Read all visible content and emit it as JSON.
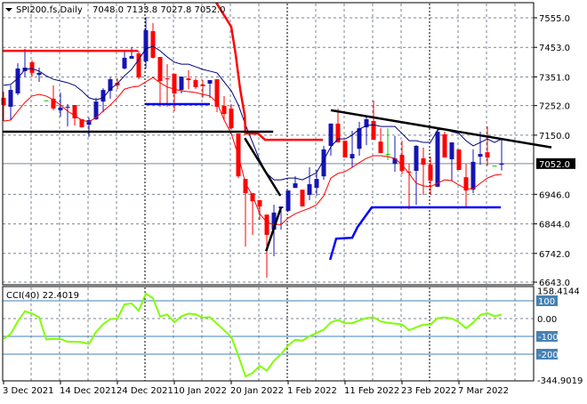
{
  "header": {
    "symbol": "SPI200.fs,Daily",
    "ohlc": "7048.0 7133.8 7027.8 7052.0"
  },
  "colors": {
    "bull": "#1414b4",
    "bear": "#ff0000",
    "doji": "#00cc00",
    "ma": "#000080",
    "envelope": "#ff0000",
    "cci": "#7fff00",
    "level": "#4682b4",
    "grid": "#7b8694"
  },
  "chart_data": [
    {
      "type": "candlestick",
      "title": "SPI200.fs,Daily",
      "x_labels": [
        {
          "index": 0,
          "label": "3 Dec 2021"
        },
        {
          "index": 8,
          "label": "14 Dec 2021"
        },
        {
          "index": 16,
          "label": "24 Dec 2021"
        },
        {
          "index": 24,
          "label": "10 Jan 2022"
        },
        {
          "index": 32,
          "label": "20 Jan 2022"
        },
        {
          "index": 40,
          "label": "1 Feb 2022"
        },
        {
          "index": 48,
          "label": "11 Feb 2022"
        },
        {
          "index": 56,
          "label": "23 Feb 2022"
        },
        {
          "index": 64,
          "label": "7 Mar 2022"
        }
      ],
      "y_ticks": [
        "7555.0",
        "7453.0",
        "7351.0",
        "7252.0",
        "7150.0",
        "6946.0",
        "6844.0",
        "6742.0",
        "6643.0"
      ],
      "ylim": [
        6643,
        7555
      ],
      "current_price": "7052.0",
      "candles_ohlc": [
        [
          7279,
          7300,
          7199,
          7254
        ],
        [
          7248,
          7322,
          7202,
          7306
        ],
        [
          7294,
          7398,
          7288,
          7380
        ],
        [
          7371,
          7448,
          7352,
          7383
        ],
        [
          7402,
          7408,
          7352,
          7365
        ],
        [
          7358,
          7383,
          7334,
          7365
        ],
        [
          7270,
          7270,
          7270,
          7270
        ],
        [
          7276,
          7322,
          7236,
          7242
        ],
        [
          7236,
          7297,
          7214,
          7245
        ],
        [
          7245,
          7257,
          7180,
          7248
        ],
        [
          7254,
          7254,
          7183,
          7208
        ],
        [
          7205,
          7205,
          7177,
          7177
        ],
        [
          7186,
          7211,
          7144,
          7202
        ],
        [
          7205,
          7279,
          7202,
          7266
        ],
        [
          7266,
          7312,
          7229,
          7306
        ],
        [
          7303,
          7349,
          7276,
          7343
        ],
        [
          7331,
          7346,
          7309,
          7322
        ],
        [
          7380,
          7441,
          7377,
          7417
        ],
        [
          7414,
          7454,
          7414,
          7423
        ],
        [
          7432,
          7441,
          7343,
          7349
        ],
        [
          7405,
          7558,
          7380,
          7512
        ],
        [
          7509,
          7537,
          7414,
          7417
        ],
        [
          7420,
          7420,
          7248,
          7337
        ],
        [
          7346,
          7395,
          7248,
          7343
        ],
        [
          7362,
          7362,
          7233,
          7294
        ],
        [
          7306,
          7352,
          7294,
          7352
        ],
        [
          7346,
          7374,
          7309,
          7340
        ],
        [
          7340,
          7346,
          7309,
          7316
        ],
        [
          7325,
          7340,
          7279,
          7319
        ],
        [
          7328,
          7340,
          7279,
          7340
        ],
        [
          7343,
          7343,
          7229,
          7248
        ],
        [
          7251,
          7285,
          7202,
          7223
        ],
        [
          7242,
          7257,
          7168,
          7174
        ],
        [
          7156,
          7156,
          7002,
          7008
        ],
        [
          6999,
          6999,
          6766,
          6950
        ],
        [
          6950,
          6950,
          6806,
          6922
        ],
        [
          6926,
          6926,
          6858,
          6904
        ],
        [
          6876,
          6876,
          6658,
          6806
        ],
        [
          6824,
          6910,
          6732,
          6883
        ],
        [
          6898,
          6904,
          6824,
          6904
        ],
        [
          6889,
          6959,
          6886,
          6959
        ],
        [
          6968,
          7008,
          6968,
          6984
        ],
        [
          6962,
          6962,
          6904,
          6904
        ],
        [
          6944,
          7039,
          6926,
          6981
        ],
        [
          6968,
          7030,
          6941,
          6999
        ],
        [
          7008,
          7113,
          6996,
          7101
        ],
        [
          7113,
          7190,
          7079,
          7190
        ],
        [
          7190,
          7242,
          7125,
          7125
        ],
        [
          7131,
          7131,
          7073,
          7073
        ],
        [
          7070,
          7165,
          7039,
          7085
        ],
        [
          7103,
          7196,
          7079,
          7174
        ],
        [
          7177,
          7217,
          7116,
          7205
        ],
        [
          7199,
          7269,
          7134,
          7134
        ],
        [
          7128,
          7174,
          7088,
          7088
        ],
        [
          7085,
          7174,
          7064,
          7085
        ],
        [
          7051,
          7147,
          7024,
          7070
        ],
        [
          7082,
          7131,
          7015,
          7027
        ],
        [
          7024,
          7051,
          6895,
          7021
        ],
        [
          7027,
          7116,
          6910,
          7113
        ],
        [
          7070,
          7107,
          6944,
          7048
        ],
        [
          7048,
          7076,
          6944,
          6993
        ],
        [
          6972,
          7177,
          6972,
          7162
        ],
        [
          7153,
          7162,
          7073,
          7073
        ],
        [
          7067,
          7125,
          6993,
          7125
        ],
        [
          7101,
          7101,
          7030,
          7030
        ],
        [
          7005,
          7051,
          6901,
          6959
        ],
        [
          6962,
          7101,
          6950,
          7058
        ],
        [
          7076,
          7162,
          7048,
          7085
        ],
        [
          7091,
          7180,
          7044,
          7073
        ],
        [
          7045,
          7045,
          7045,
          7045
        ],
        [
          7048,
          7134,
          7028,
          7052
        ]
      ],
      "moving_average": [
        7322,
        7325,
        7346,
        7377,
        7380,
        7371,
        7355,
        7343,
        7337,
        7331,
        7322,
        7303,
        7279,
        7272,
        7279,
        7309,
        7328,
        7355,
        7377,
        7411,
        7448,
        7457,
        7441,
        7420,
        7402,
        7395,
        7395,
        7386,
        7377,
        7371,
        7365,
        7334,
        7303,
        7254,
        7186,
        7125,
        7064,
        7018,
        6996,
        6996,
        7002,
        7002,
        6996,
        7008,
        7021,
        7064,
        7110,
        7137,
        7137,
        7150,
        7171,
        7183,
        7186,
        7180,
        7180,
        7180,
        7156,
        7131,
        7131,
        7125,
        7125,
        7168,
        7171,
        7162,
        7156,
        7131,
        7113,
        7125,
        7137,
        7125,
        7137
      ],
      "lower_band": [
        7199,
        7202,
        7233,
        7263,
        7285,
        7291,
        7285,
        7272,
        7254,
        7233,
        7217,
        7202,
        7196,
        7211,
        7233,
        7254,
        7279,
        7309,
        7316,
        7319,
        7334,
        7349,
        7331,
        7316,
        7309,
        7303,
        7300,
        7297,
        7291,
        7285,
        7263,
        7202,
        7156,
        7079,
        6984,
        6941,
        6879,
        6849,
        6842,
        6842,
        6864,
        6879,
        6889,
        6898,
        6910,
        6941,
        7002,
        7018,
        7024,
        7039,
        7055,
        7070,
        7079,
        7079,
        7076,
        7070,
        7048,
        7018,
        6984,
        6975,
        6972,
        6984,
        6996,
        6993,
        6978,
        6965,
        6965,
        6984,
        7002,
        7012,
        7015
      ],
      "drawings": [
        {
          "kind": "resistance",
          "color": "#ff0000",
          "points": [
            [
              -0.1,
              7441
            ],
            [
              18.9,
              7441
            ]
          ]
        },
        {
          "kind": "resistance",
          "color": "#ff0000",
          "points": [
            [
              29.9,
              7607
            ],
            [
              32,
              7524
            ],
            [
              32.6,
              7432
            ],
            [
              33.25,
              7309
            ],
            [
              33.9,
              7217
            ],
            [
              34,
              7156
            ],
            [
              35.75,
              7156
            ],
            [
              36.75,
              7134
            ],
            [
              44.9,
              7134
            ]
          ]
        },
        {
          "kind": "support",
          "color": "#0000ff",
          "points": [
            [
              19.9,
              7257
            ],
            [
              29,
              7257
            ]
          ]
        },
        {
          "kind": "level",
          "color": "#000000",
          "points": [
            [
              -0.1,
              7162
            ],
            [
              37.9,
              7162
            ]
          ]
        },
        {
          "kind": "trendline",
          "color": "#000000",
          "points": [
            [
              33.9,
              7140
            ],
            [
              38.9,
              6941
            ]
          ]
        },
        {
          "kind": "trendline",
          "color": "#000000",
          "points": [
            [
              36.9,
              6750
            ],
            [
              39,
              6901
            ]
          ]
        },
        {
          "kind": "trendline",
          "color": "#000000",
          "points": [
            [
              46,
              7236
            ],
            [
              77,
              7108
            ]
          ]
        },
        {
          "kind": "support",
          "color": "#0000ff",
          "points": [
            [
              45.9,
              6720
            ],
            [
              46.75,
              6793
            ],
            [
              49,
              6796
            ],
            [
              49.75,
              6833
            ],
            [
              51.75,
              6901
            ],
            [
              69.9,
              6901
            ]
          ]
        }
      ]
    },
    {
      "type": "line",
      "title": "CCI(40) 22.4019",
      "y_ticks": [
        "158.4144",
        "100",
        "0.00",
        "-100",
        "-200",
        "-344.9019"
      ],
      "levels": [
        100,
        -100,
        -200
      ],
      "ylim": [
        -344.9019,
        158.4144
      ],
      "values": [
        -115,
        -86,
        -16,
        41,
        28,
        7,
        -117,
        -114,
        -115,
        -130,
        -130,
        -132,
        -143,
        -75,
        -31,
        -3,
        0,
        80,
        85,
        44,
        141,
        114,
        11,
        23,
        -21,
        13,
        28,
        24,
        5,
        8,
        -29,
        -65,
        -102,
        -208,
        -325,
        -306,
        -265,
        -293,
        -237,
        -200,
        -151,
        -119,
        -124,
        -99,
        -81,
        -62,
        -21,
        -8,
        -26,
        -26,
        -10,
        3,
        7,
        -16,
        -24,
        -28,
        -33,
        -65,
        -49,
        -34,
        -34,
        2,
        7,
        0,
        -20,
        -54,
        -23,
        20,
        31,
        13,
        22.4
      ]
    }
  ]
}
